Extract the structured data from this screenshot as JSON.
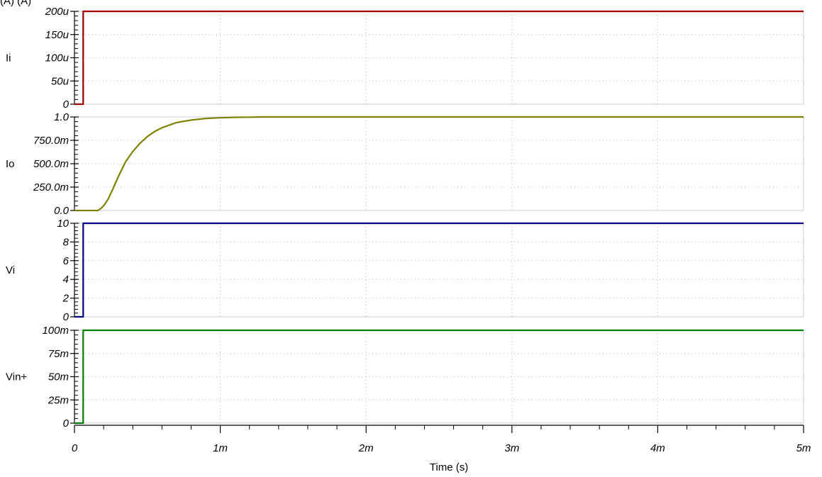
{
  "window": {
    "corner_text": "(A) (A)"
  },
  "chart_data": [
    {
      "type": "line",
      "ylabel": "Ii",
      "color": "#a00000",
      "ylim": [
        0,
        0.0002
      ],
      "yticks": [
        0,
        5e-05,
        0.0001,
        0.00015,
        0.0002
      ],
      "ytick_labels": [
        "0",
        "50u",
        "100u",
        "150u",
        "200u"
      ],
      "series": [
        {
          "x": [
            0,
            6e-05,
            6e-05,
            0.005
          ],
          "y": [
            0,
            0,
            0.0002,
            0.0002
          ]
        }
      ]
    },
    {
      "type": "line",
      "ylabel": "Io",
      "color": "#808000",
      "ylim": [
        0,
        1
      ],
      "yticks": [
        0,
        0.25,
        0.5,
        0.75,
        1
      ],
      "ytick_labels": [
        "0.0",
        "250.0m",
        "500.0m",
        "750.0m",
        "1.0"
      ],
      "series": [
        {
          "x": [
            0,
            0.00016,
            0.00018,
            0.0002,
            0.00023,
            0.00026,
            0.0003,
            0.00035,
            0.0004,
            0.00045,
            0.0005,
            0.00055,
            0.0006,
            0.0007,
            0.0008,
            0.0009,
            0.001,
            0.0011,
            0.0012,
            0.0013,
            0.005
          ],
          "y": [
            0,
            0,
            0.02,
            0.05,
            0.12,
            0.22,
            0.36,
            0.52,
            0.63,
            0.72,
            0.79,
            0.845,
            0.885,
            0.94,
            0.967,
            0.983,
            0.991,
            0.996,
            0.998,
            1,
            1
          ]
        }
      ]
    },
    {
      "type": "line",
      "ylabel": "Vi",
      "color": "#000080",
      "ylim": [
        0,
        10
      ],
      "yticks": [
        0,
        2,
        4,
        6,
        8,
        10
      ],
      "ytick_labels": [
        "0",
        "2",
        "4",
        "6",
        "8",
        "10"
      ],
      "series": [
        {
          "x": [
            0,
            6e-05,
            6e-05,
            0.005
          ],
          "y": [
            0,
            0,
            10,
            10
          ]
        }
      ]
    },
    {
      "type": "line",
      "ylabel": "Vin+",
      "color": "#008000",
      "ylim": [
        0,
        0.1
      ],
      "yticks": [
        0,
        0.025,
        0.05,
        0.075,
        0.1
      ],
      "ytick_labels": [
        "0",
        "25m",
        "50m",
        "75m",
        "100m"
      ],
      "series": [
        {
          "x": [
            0,
            6e-05,
            6e-05,
            0.005
          ],
          "y": [
            0,
            0,
            0.1,
            0.1
          ]
        }
      ]
    }
  ],
  "x_axis": {
    "label": "Time (s)",
    "xlim": [
      0,
      0.005
    ],
    "ticks": [
      0,
      0.001,
      0.002,
      0.003,
      0.004,
      0.005
    ],
    "tick_labels": [
      "0",
      "1m",
      "2m",
      "3m",
      "4m",
      "5m"
    ],
    "grid": true
  }
}
